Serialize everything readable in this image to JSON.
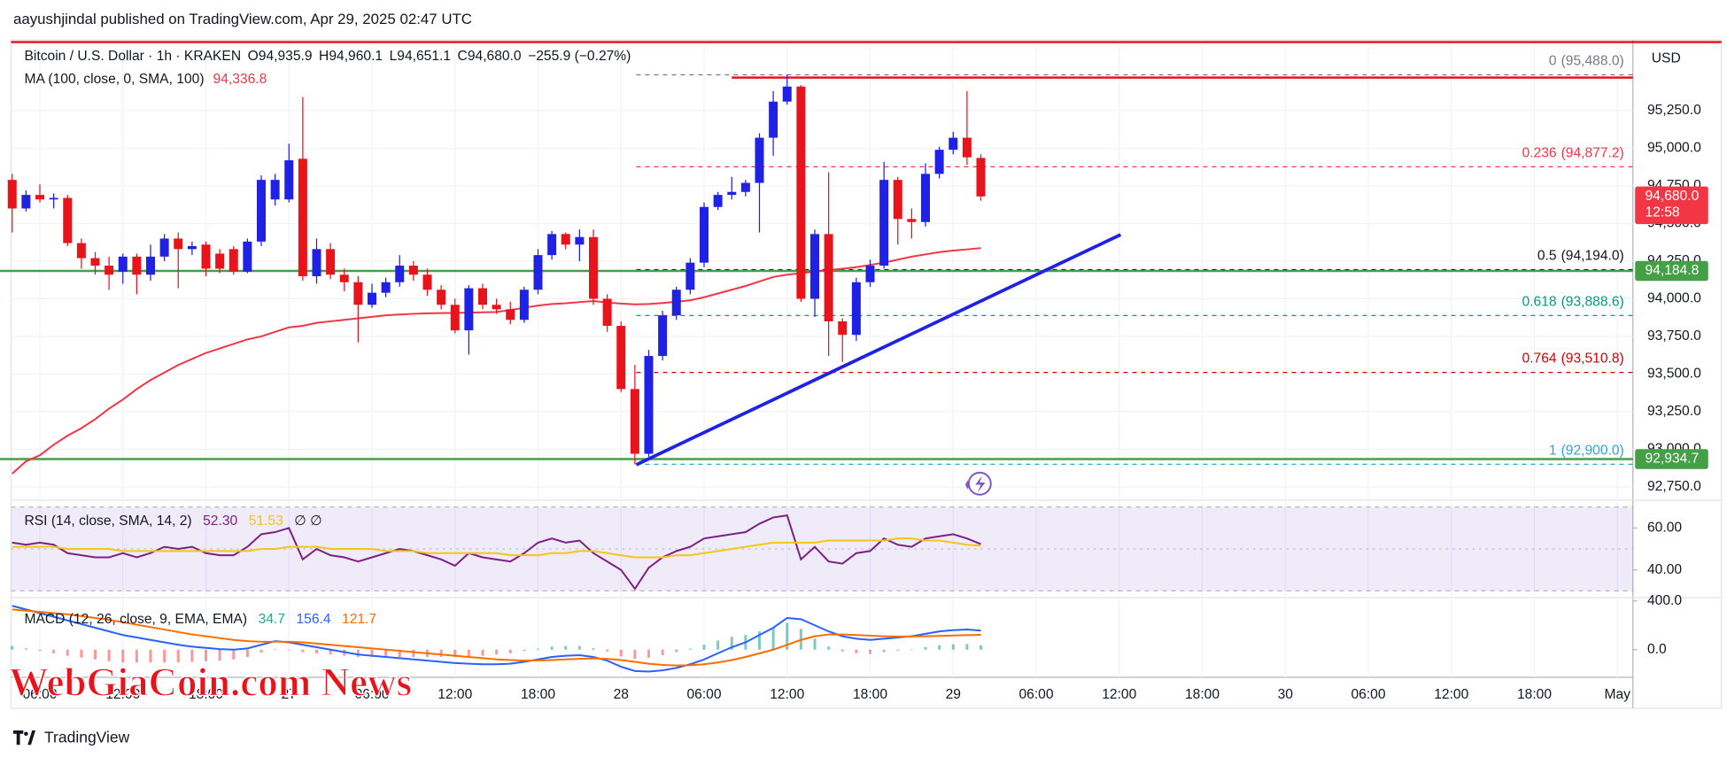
{
  "header": {
    "published": "aayushjindal published on TradingView.com, Apr 29, 2025 02:47 UTC"
  },
  "watermark": "WebGiaCoin.com News",
  "footer": {
    "brand": "TradingView"
  },
  "chart_data": [
    {
      "type": "candlestick",
      "title": "Bitcoin / U.S. Dollar · 1h · KRAKEN",
      "ohlc_legend": [
        {
          "key": "O",
          "value": "94,935.9"
        },
        {
          "key": "H",
          "value": "94,960.1"
        },
        {
          "key": "L",
          "value": "94,651.1"
        },
        {
          "key": "C",
          "value": "94,680.0"
        }
      ],
      "change": "−255.9 (−0.27%)",
      "currency": "USD",
      "up_color": "#1f22e5",
      "down_color": "#e8141c",
      "x": [
        0,
        1,
        2,
        3,
        4,
        5,
        6,
        7,
        8,
        9,
        10,
        11,
        12,
        13,
        14,
        15,
        16,
        17,
        18,
        19,
        20,
        21,
        22,
        23,
        24,
        25,
        26,
        27,
        28,
        29,
        30,
        31,
        32,
        33,
        34,
        35,
        36,
        37,
        38,
        39,
        40,
        41,
        42,
        43,
        44,
        45,
        46,
        47,
        48,
        49,
        50,
        51,
        52,
        53,
        54,
        55,
        56,
        57,
        58,
        59,
        60,
        61,
        62,
        63,
        64,
        65,
        66,
        67,
        68,
        69,
        70
      ],
      "open": [
        94790,
        94600,
        94690,
        94660,
        94670,
        94370,
        94270,
        94220,
        94180,
        94280,
        94160,
        94280,
        94400,
        94330,
        94360,
        94300,
        94330,
        94180,
        94380,
        94660,
        94660,
        94930,
        94150,
        94330,
        94160,
        94110,
        93960,
        94040,
        94110,
        94220,
        94160,
        94060,
        93960,
        93790,
        94070,
        93960,
        93930,
        93860,
        94060,
        94290,
        94430,
        94360,
        94410,
        94000,
        93820,
        93400,
        92970,
        93620,
        93890,
        94060,
        94240,
        94610,
        94690,
        94710,
        94770,
        95070,
        95310,
        95410,
        94000,
        94430,
        93850,
        93760,
        94110,
        94220,
        94790,
        94530,
        94510,
        94830,
        94990,
        95070,
        94935.9
      ],
      "high": [
        94830,
        94720,
        94760,
        94700,
        94690,
        94400,
        94310,
        94280,
        94300,
        94300,
        94360,
        94430,
        94440,
        94380,
        94380,
        94330,
        94350,
        94400,
        94820,
        94830,
        95030,
        95340,
        94400,
        94370,
        94200,
        94150,
        94100,
        94140,
        94290,
        94250,
        94200,
        94090,
        94000,
        94090,
        94100,
        94000,
        93980,
        94080,
        94330,
        94450,
        94440,
        94460,
        94460,
        94030,
        93850,
        93560,
        93660,
        93920,
        94080,
        94270,
        94640,
        94710,
        94810,
        94790,
        95100,
        95380,
        95488,
        95420,
        94460,
        94840,
        93870,
        94140,
        94260,
        94910,
        94810,
        94600,
        94900,
        95010,
        95110,
        95380,
        94960.1
      ],
      "low": [
        94440,
        94580,
        94640,
        94600,
        94350,
        94200,
        94160,
        94060,
        94100,
        94030,
        94120,
        94250,
        94070,
        94290,
        94150,
        94170,
        94160,
        94170,
        94350,
        94620,
        94640,
        94120,
        94100,
        94130,
        94050,
        93710,
        93940,
        94010,
        94080,
        94120,
        94020,
        93930,
        93770,
        93630,
        93930,
        93900,
        93830,
        93840,
        94030,
        94260,
        94330,
        94250,
        93960,
        93780,
        93380,
        92900,
        92950,
        93590,
        93860,
        94030,
        94210,
        94590,
        94660,
        94680,
        94440,
        94950,
        95290,
        93980,
        93880,
        93620,
        93580,
        93720,
        94080,
        94200,
        94360,
        94400,
        94480,
        94800,
        94960,
        94890,
        94651.1
      ],
      "close": [
        94600,
        94690,
        94660,
        94670,
        94370,
        94270,
        94220,
        94160,
        94280,
        94160,
        94280,
        94400,
        94330,
        94350,
        94200,
        94200,
        94180,
        94380,
        94790,
        94790,
        94920,
        94150,
        94330,
        94160,
        94110,
        93960,
        94040,
        94110,
        94220,
        94160,
        94060,
        93960,
        93790,
        94070,
        93960,
        93930,
        93860,
        94060,
        94290,
        94430,
        94360,
        94410,
        94000,
        93820,
        93400,
        92970,
        93620,
        93890,
        94060,
        94240,
        94610,
        94690,
        94710,
        94770,
        95070,
        95310,
        95410,
        94000,
        94430,
        93850,
        93760,
        94110,
        94220,
        94790,
        94530,
        94510,
        94830,
        94990,
        95070,
        94940,
        94680
      ],
      "series": [
        {
          "name": "MA (100, close, 0, SMA, 100)",
          "color": "#f23645",
          "legend_value": "94,336.8",
          "values": [
            92838,
            92920,
            92960,
            93030,
            93090,
            93140,
            93200,
            93270,
            93330,
            93400,
            93460,
            93510,
            93560,
            93600,
            93640,
            93670,
            93700,
            93730,
            93750,
            93780,
            93810,
            93820,
            93840,
            93850,
            93860,
            93870,
            93880,
            93890,
            93895,
            93900,
            93903,
            93905,
            93906,
            93908,
            93910,
            93912,
            93925,
            93940,
            93955,
            93965,
            93970,
            93978,
            93985,
            93975,
            93968,
            93963,
            93965,
            93972,
            93980,
            93990,
            94010,
            94035,
            94060,
            94085,
            94115,
            94145,
            94160,
            94170,
            94180,
            94190,
            94200,
            94210,
            94225,
            94240,
            94260,
            94280,
            94295,
            94310,
            94320,
            94328,
            94336.8
          ]
        }
      ],
      "xlim": [
        -0.88,
        117.12
      ],
      "xticks": [
        {
          "value": 2,
          "label": "06:00"
        },
        {
          "value": 8,
          "label": "12:00"
        },
        {
          "value": 14,
          "label": "18:00"
        },
        {
          "value": 20,
          "label": "27"
        },
        {
          "value": 26,
          "label": "06:00"
        },
        {
          "value": 32,
          "label": "12:00"
        },
        {
          "value": 38,
          "label": "18:00"
        },
        {
          "value": 44,
          "label": "28"
        },
        {
          "value": 50,
          "label": "06:00"
        },
        {
          "value": 56,
          "label": "12:00"
        },
        {
          "value": 62,
          "label": "18:00"
        },
        {
          "value": 68,
          "label": "29"
        },
        {
          "value": 74,
          "label": "06:00"
        },
        {
          "value": 80,
          "label": "12:00"
        },
        {
          "value": 86,
          "label": "18:00"
        },
        {
          "value": 92,
          "label": "30"
        },
        {
          "value": 98,
          "label": "06:00"
        },
        {
          "value": 104,
          "label": "12:00"
        },
        {
          "value": 110,
          "label": "18:00"
        },
        {
          "value": 116,
          "label": "May"
        }
      ],
      "ylim": [
        92676,
        95691
      ],
      "yticks": [
        {
          "value": 92750,
          "label": "92,750.0"
        },
        {
          "value": 93000,
          "label": "93,000.0"
        },
        {
          "value": 93250,
          "label": "93,250.0"
        },
        {
          "value": 93500,
          "label": "93,500.0"
        },
        {
          "value": 93750,
          "label": "93,750.0"
        },
        {
          "value": 94000,
          "label": "94,000.0"
        },
        {
          "value": 94250,
          "label": "94,250.0"
        },
        {
          "value": 94500,
          "label": "94,500.0"
        },
        {
          "value": 94750,
          "label": "94,750.0"
        },
        {
          "value": 95000,
          "label": "95,000.0"
        },
        {
          "value": 95250,
          "label": "95,250.0"
        }
      ],
      "grid": true,
      "levels": [
        {
          "value": 95470,
          "from_x": 52,
          "color": "#e8141c"
        },
        {
          "value": 94184.8,
          "from_x": -0.88,
          "color": "#43a047"
        },
        {
          "value": 92934.7,
          "from_x": -0.88,
          "color": "#43a047"
        }
      ],
      "fib_from_x": 45.1,
      "fib_levels": [
        {
          "ratio": 0,
          "value": 95488,
          "label": "(95,488.0)",
          "color": "#787b86"
        },
        {
          "ratio": 0.236,
          "value": 94877.2,
          "label": "(94,877.2)",
          "color": "#f23645"
        },
        {
          "ratio": 0.5,
          "value": 94194,
          "label": "(94,194.0)",
          "color": "#131722"
        },
        {
          "ratio": 0.618,
          "value": 93888.6,
          "label": "(93,888.6)",
          "color": "#089981"
        },
        {
          "ratio": 0.764,
          "value": 93510.8,
          "label": "(93,510.8)",
          "color": "#d50000"
        },
        {
          "ratio": 1,
          "value": 92900,
          "label": "(92,900.0)",
          "color": "#2fa4d6"
        }
      ],
      "trendline": {
        "x": [
          45.1,
          80.1
        ],
        "y": [
          92897,
          94426
        ],
        "color": "#1f22e5"
      },
      "price_labels": [
        {
          "value": 94680,
          "label": "94,680.0",
          "countdown": "12:58",
          "color": "#f23645"
        },
        {
          "value": 94184.8,
          "label": "94,184.8",
          "color": "#43a047"
        },
        {
          "value": 92934.7,
          "label": "92,934.7",
          "color": "#43a047"
        }
      ]
    },
    {
      "type": "line",
      "title": "RSI (14, close, SMA, 14, 2)",
      "legend_tail": "∅ ∅",
      "series": [
        {
          "color": "#7e1f86",
          "legend_value": "52.30",
          "values": [
            53,
            52,
            53,
            52,
            48,
            47,
            46,
            46,
            48,
            46,
            48,
            51,
            50,
            51,
            48,
            47,
            47,
            51,
            57,
            58,
            60,
            45,
            50,
            47,
            46,
            44,
            46,
            48,
            50,
            49,
            47,
            45,
            42,
            48,
            46,
            45,
            44,
            48,
            53,
            55,
            53,
            54,
            48,
            44,
            40,
            31,
            41,
            46,
            49,
            51,
            55,
            56,
            57,
            58,
            62,
            65,
            66,
            45,
            51,
            44,
            43,
            48,
            49,
            55,
            52,
            51,
            55,
            56,
            57,
            55,
            52.3
          ]
        },
        {
          "color": "#f5c518",
          "legend_value": "51.53",
          "values": [
            51,
            51,
            51,
            51,
            50,
            50,
            50,
            50,
            49,
            49,
            49,
            49,
            49,
            49,
            49,
            49,
            49,
            49,
            50,
            50,
            51,
            51,
            51,
            50,
            50,
            50,
            50,
            49,
            49,
            49,
            48,
            48,
            48,
            48,
            48,
            48,
            47,
            47,
            47,
            48,
            48,
            49,
            49,
            48,
            47,
            46,
            46,
            46,
            47,
            47,
            48,
            49,
            50,
            51,
            52,
            53,
            53,
            53,
            53,
            54,
            54,
            54,
            54,
            54,
            55,
            55,
            54,
            54,
            53,
            52,
            51.53
          ]
        }
      ],
      "band": [
        30,
        70
      ],
      "midline": 50,
      "band_color": "#7e57c2",
      "ylim": [
        26.8,
        73.2
      ],
      "yticks": [
        {
          "value": 40,
          "label": "40.00"
        },
        {
          "value": 60,
          "label": "60.00"
        }
      ]
    },
    {
      "type": "macd",
      "title": "MACD (12, 26, close, 9, EMA, EMA)",
      "histogram": {
        "color": "#26a69a",
        "neg_color": "#ff5252",
        "legend_value": "34.7",
        "values": [
          30,
          10,
          -10,
          -30,
          -50,
          -65,
          -80,
          -95,
          -105,
          -105,
          -105,
          -105,
          -105,
          -100,
          -95,
          -90,
          -80,
          -60,
          -25,
          5,
          -5,
          -20,
          -30,
          -40,
          -50,
          -60,
          -60,
          -60,
          -60,
          -60,
          -60,
          -60,
          -60,
          -55,
          -50,
          -40,
          -30,
          -10,
          8,
          25,
          30,
          30,
          12,
          -15,
          -55,
          -75,
          -65,
          -45,
          -20,
          8,
          40,
          75,
          105,
          120,
          150,
          180,
          220,
          170,
          90,
          25,
          -15,
          -30,
          -35,
          -20,
          -8,
          2,
          20,
          37,
          44,
          46,
          34.7
        ]
      },
      "series": [
        {
          "color": "#2962ff",
          "legend_value": "156.4",
          "values": [
            360,
            330,
            300,
            270,
            240,
            210,
            180,
            150,
            120,
            100,
            80,
            60,
            40,
            25,
            15,
            5,
            0,
            10,
            40,
            70,
            60,
            40,
            20,
            0,
            -20,
            -40,
            -50,
            -60,
            -70,
            -80,
            -90,
            -100,
            -110,
            -115,
            -120,
            -120,
            -115,
            -100,
            -80,
            -60,
            -50,
            -45,
            -60,
            -90,
            -140,
            -175,
            -180,
            -170,
            -150,
            -120,
            -80,
            -30,
            20,
            60,
            120,
            180,
            260,
            250,
            200,
            150,
            110,
            90,
            80,
            90,
            100,
            110,
            130,
            150,
            160,
            165,
            156.4
          ]
        },
        {
          "color": "#ff6d00",
          "legend_value": "121.7",
          "values": [
            330,
            320,
            310,
            300,
            290,
            275,
            260,
            245,
            225,
            205,
            185,
            165,
            145,
            125,
            110,
            95,
            80,
            70,
            65,
            65,
            65,
            60,
            50,
            40,
            30,
            20,
            10,
            0,
            -10,
            -20,
            -30,
            -40,
            -50,
            -60,
            -70,
            -80,
            -85,
            -90,
            -88,
            -85,
            -80,
            -75,
            -72,
            -75,
            -85,
            -100,
            -115,
            -125,
            -130,
            -128,
            -120,
            -105,
            -85,
            -60,
            -30,
            0,
            40,
            80,
            110,
            125,
            125,
            120,
            115,
            110,
            108,
            108,
            110,
            113,
            116,
            119,
            121.7
          ]
        }
      ],
      "ylim": [
        -227,
        427
      ],
      "yticks": [
        {
          "value": 0,
          "label": "0.0"
        },
        {
          "value": 400,
          "label": "400.0"
        }
      ]
    }
  ]
}
